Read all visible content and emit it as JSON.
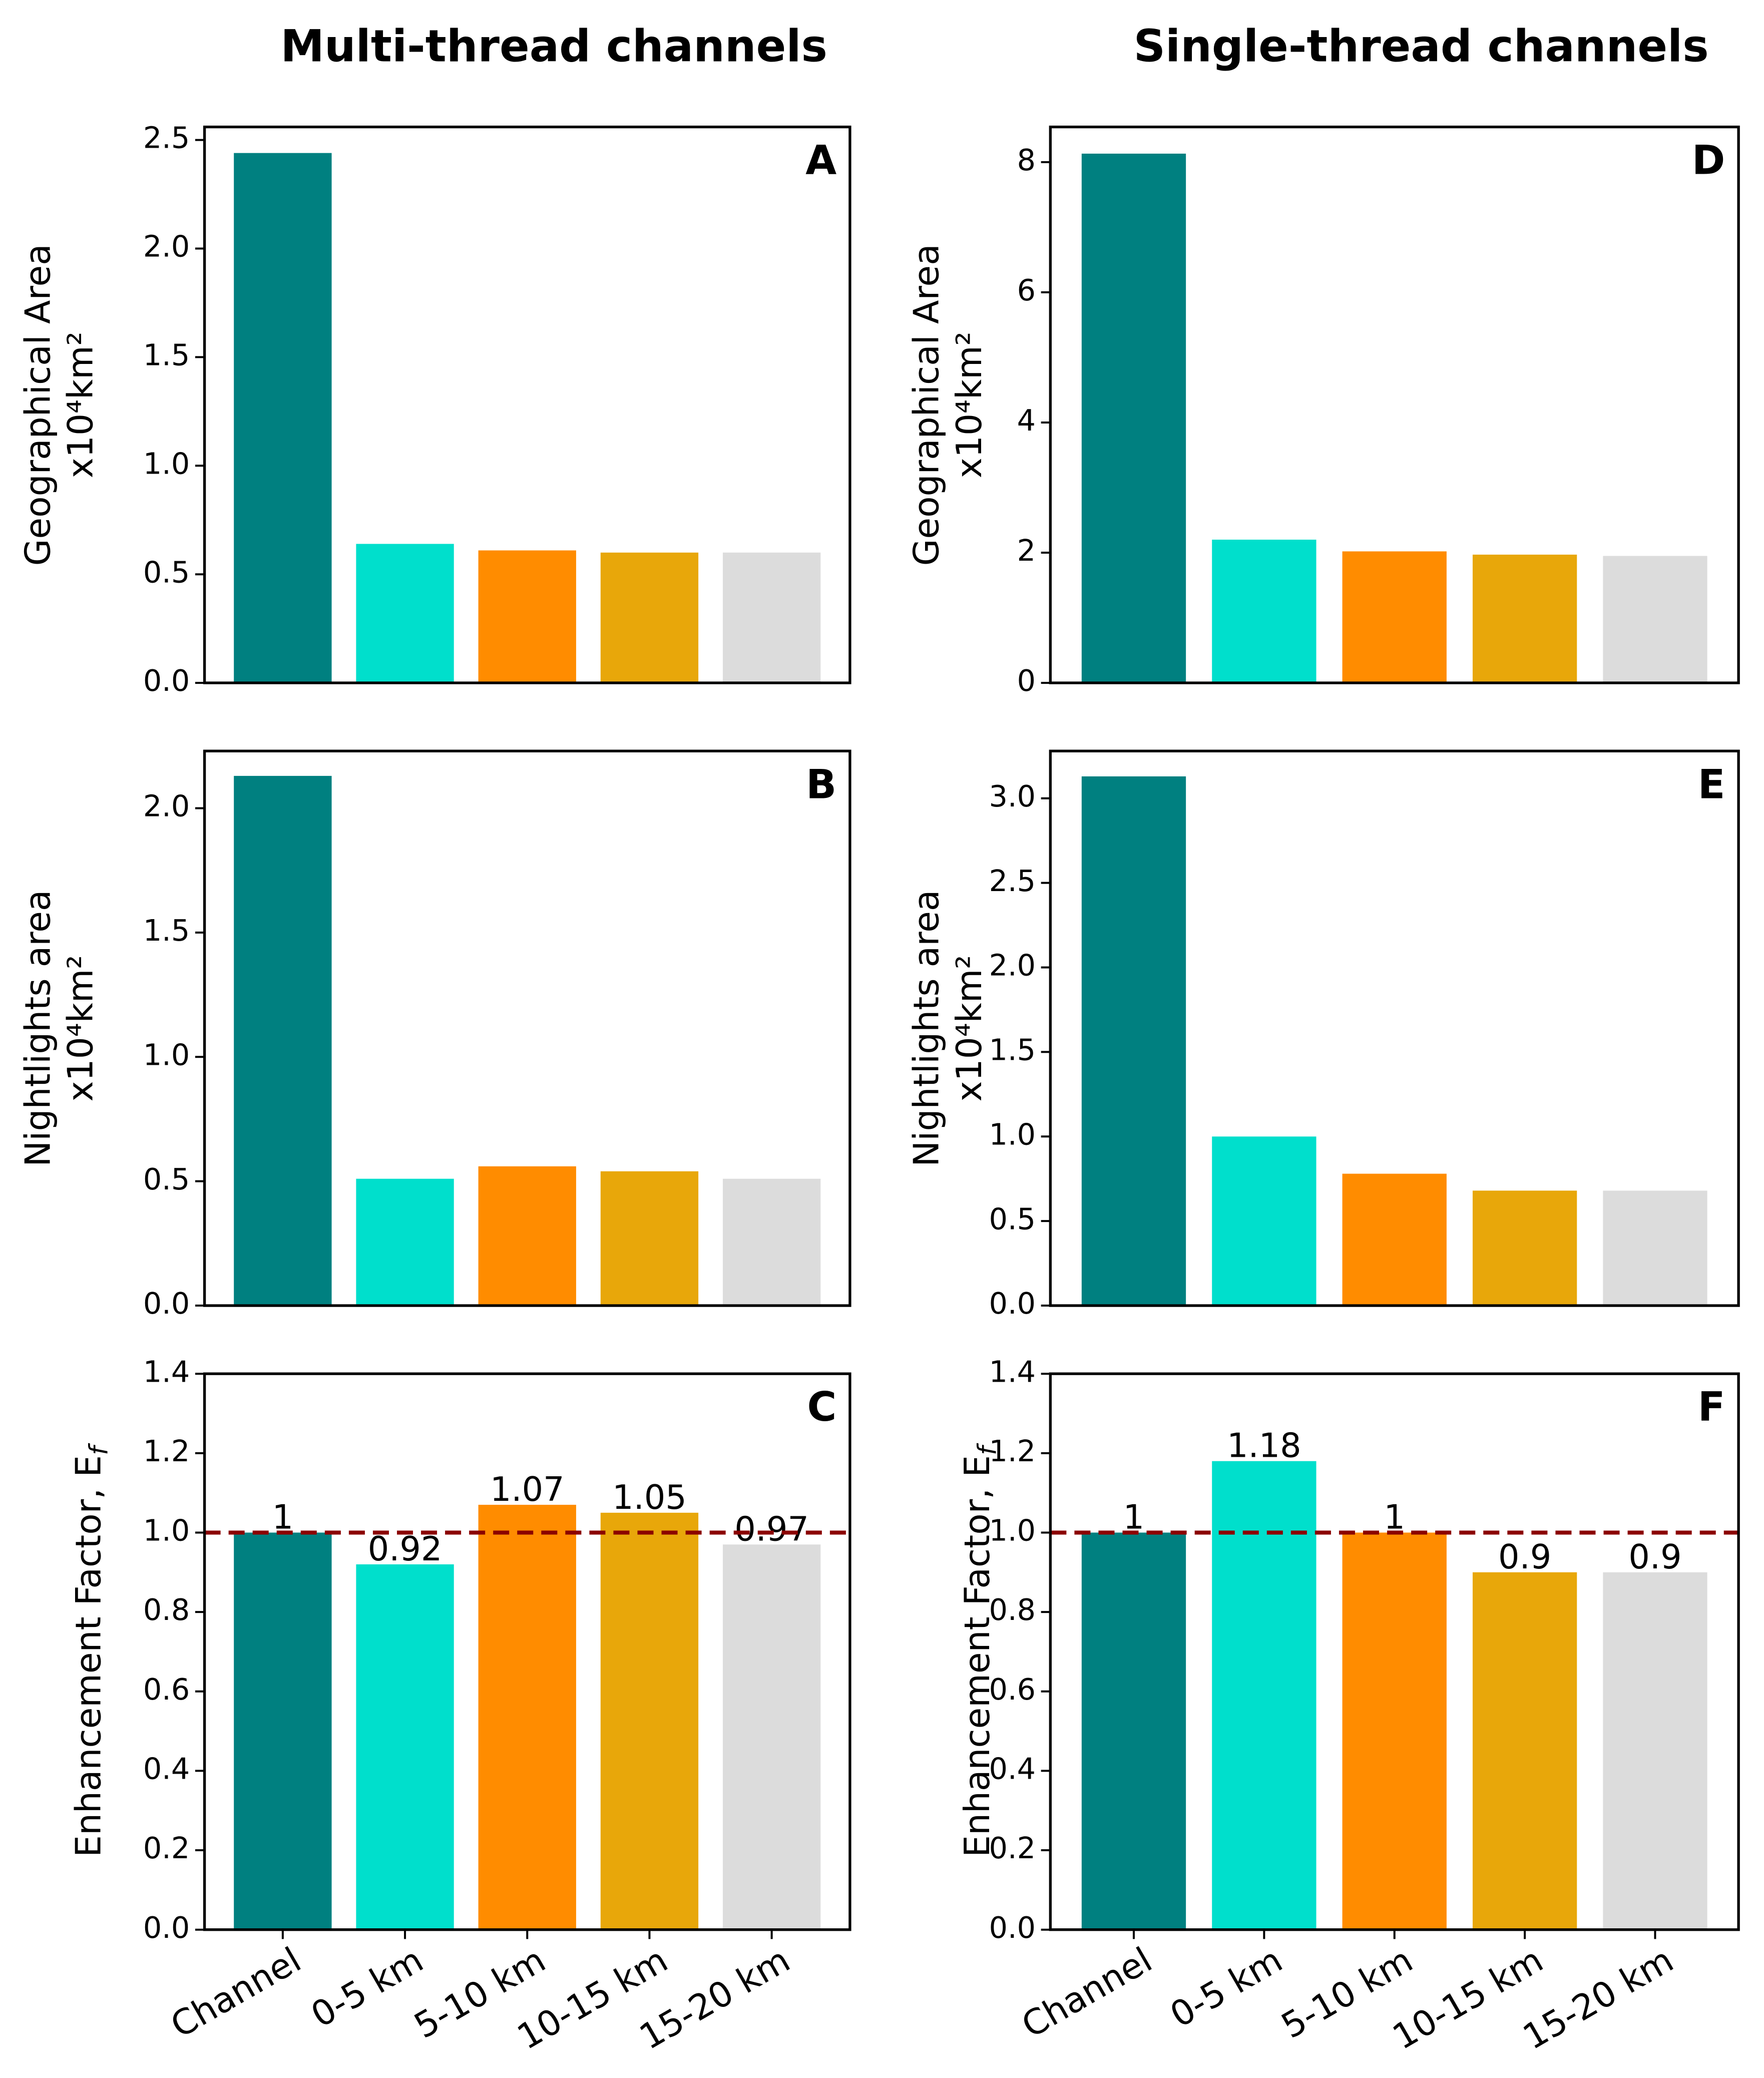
{
  "chart_data": [
    {
      "type": "bar",
      "title": "Multi-thread channels",
      "panel_label": "A",
      "ylabel": [
        "Geographical Area",
        "x10⁴km²"
      ],
      "categories": [
        "Channel",
        "0-5 km",
        "5-10 km",
        "10-15 km",
        "15-20 km"
      ],
      "values": [
        2.44,
        0.64,
        0.61,
        0.6,
        0.6
      ],
      "colors": [
        "#008080",
        "#00dfcc",
        "#ff8c00",
        "#e8a70a",
        "#dcdcdc"
      ],
      "ylim": [
        0,
        2.56
      ],
      "yticks": [
        {
          "value": 0,
          "label": "0.0"
        },
        {
          "value": 0.5,
          "label": "0.5"
        },
        {
          "value": 1,
          "label": "1.0"
        },
        {
          "value": 1.5,
          "label": "1.5"
        },
        {
          "value": 2,
          "label": "2.0"
        },
        {
          "value": 2.5,
          "label": "2.5"
        }
      ]
    },
    {
      "type": "bar",
      "panel_label": "B",
      "ylabel": [
        "Nightlights area",
        "x10⁴km²"
      ],
      "categories": [
        "Channel",
        "0-5 km",
        "5-10 km",
        "10-15 km",
        "15-20 km"
      ],
      "values": [
        2.13,
        0.51,
        0.56,
        0.54,
        0.51
      ],
      "colors": [
        "#008080",
        "#00dfcc",
        "#ff8c00",
        "#e8a70a",
        "#dcdcdc"
      ],
      "ylim": [
        0,
        2.23
      ],
      "yticks": [
        {
          "value": 0,
          "label": "0.0"
        },
        {
          "value": 0.5,
          "label": "0.5"
        },
        {
          "value": 1,
          "label": "1.0"
        },
        {
          "value": 1.5,
          "label": "1.5"
        },
        {
          "value": 2,
          "label": "2.0"
        }
      ]
    },
    {
      "type": "bar",
      "panel_label": "C",
      "ylabel": [
        "Enhancement Factor, E"
      ],
      "ylabel_sub": "f",
      "categories": [
        "Channel",
        "0-5 km",
        "5-10 km",
        "10-15 km",
        "15-20 km"
      ],
      "values": [
        1,
        0.92,
        1.07,
        1.05,
        0.97
      ],
      "show_value_labels": true,
      "colors": [
        "#008080",
        "#00dfcc",
        "#ff8c00",
        "#e8a70a",
        "#dcdcdc"
      ],
      "hline": 1,
      "hline_color": "#8b0000",
      "ylim": [
        0,
        1.4
      ],
      "show_xticklabels": true,
      "yticks": [
        {
          "value": 0,
          "label": "0.0"
        },
        {
          "value": 0.2,
          "label": "0.2"
        },
        {
          "value": 0.4,
          "label": "0.4"
        },
        {
          "value": 0.6,
          "label": "0.6"
        },
        {
          "value": 0.8,
          "label": "0.8"
        },
        {
          "value": 1,
          "label": "1.0"
        },
        {
          "value": 1.2,
          "label": "1.2"
        },
        {
          "value": 1.4,
          "label": "1.4"
        }
      ]
    },
    {
      "type": "bar",
      "title": "Single-thread channels",
      "panel_label": "D",
      "ylabel": [
        "Geographical Area",
        "x10⁴km²"
      ],
      "categories": [
        "Channel",
        "0-5 km",
        "5-10 km",
        "10-15 km",
        "15-20 km"
      ],
      "values": [
        8.13,
        2.2,
        2.02,
        1.97,
        1.95
      ],
      "colors": [
        "#008080",
        "#00dfcc",
        "#ff8c00",
        "#e8a70a",
        "#dcdcdc"
      ],
      "ylim": [
        0,
        8.54
      ],
      "yticks": [
        0,
        2,
        4,
        6,
        8
      ]
    },
    {
      "type": "bar",
      "panel_label": "E",
      "ylabel": [
        "Nightlights area",
        "x10⁴km²"
      ],
      "categories": [
        "Channel",
        "0-5 km",
        "5-10 km",
        "10-15 km",
        "15-20 km"
      ],
      "values": [
        3.13,
        1.0,
        0.78,
        0.68,
        0.68
      ],
      "colors": [
        "#008080",
        "#00dfcc",
        "#ff8c00",
        "#e8a70a",
        "#dcdcdc"
      ],
      "ylim": [
        0,
        3.28
      ],
      "yticks": [
        {
          "value": 0,
          "label": "0.0"
        },
        {
          "value": 0.5,
          "label": "0.5"
        },
        {
          "value": 1,
          "label": "1.0"
        },
        {
          "value": 1.5,
          "label": "1.5"
        },
        {
          "value": 2,
          "label": "2.0"
        },
        {
          "value": 2.5,
          "label": "2.5"
        },
        {
          "value": 3,
          "label": "3.0"
        }
      ]
    },
    {
      "type": "bar",
      "panel_label": "F",
      "ylabel": [
        "Enhancement Factor, E"
      ],
      "ylabel_sub": "f",
      "categories": [
        "Channel",
        "0-5 km",
        "5-10 km",
        "10-15 km",
        "15-20 km"
      ],
      "values": [
        1,
        1.18,
        1,
        0.9,
        0.9
      ],
      "show_value_labels": true,
      "colors": [
        "#008080",
        "#00dfcc",
        "#ff8c00",
        "#e8a70a",
        "#dcdcdc"
      ],
      "hline": 1,
      "hline_color": "#8b0000",
      "ylim": [
        0,
        1.4
      ],
      "show_xticklabels": true,
      "yticks": [
        {
          "value": 0,
          "label": "0.0"
        },
        {
          "value": 0.2,
          "label": "0.2"
        },
        {
          "value": 0.4,
          "label": "0.4"
        },
        {
          "value": 0.6,
          "label": "0.6"
        },
        {
          "value": 0.8,
          "label": "0.8"
        },
        {
          "value": 1,
          "label": "1.0"
        },
        {
          "value": 1.2,
          "label": "1.2"
        },
        {
          "value": 1.4,
          "label": "1.4"
        }
      ]
    }
  ]
}
